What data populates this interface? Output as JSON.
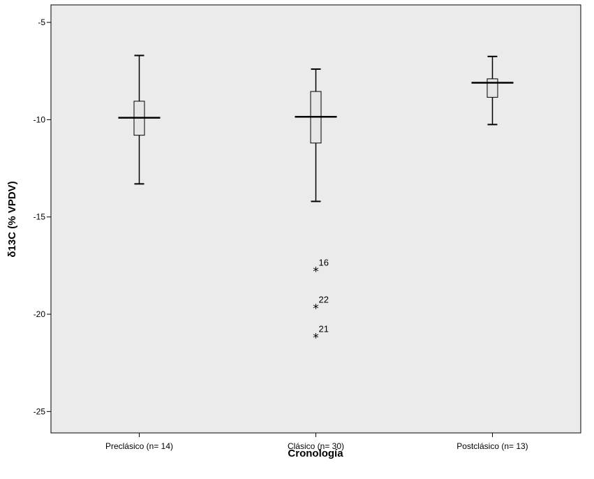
{
  "chart_data": {
    "type": "boxplot",
    "title": "",
    "xlabel": "Cronología",
    "ylabel": "δ13C (% VPDV)",
    "ylim": [
      -26.1,
      -4.1
    ],
    "yticks": [
      -5,
      -10,
      -15,
      -20,
      -25
    ],
    "ytick_labels": [
      "-5",
      "-10",
      "-15",
      "-20",
      "-25"
    ],
    "grid": false,
    "colors": {
      "plot_bg": "#ebebeb",
      "box_fill": "#e6e6e6",
      "stroke": "#000000"
    },
    "categories": [
      "Preclásico (n= 14)",
      "Clásico (n= 30)",
      "Postclásico (n= 13)"
    ],
    "boxes": [
      {
        "category": "Preclásico (n= 14)",
        "whisker_low": -13.3,
        "q1": -10.8,
        "median": -9.9,
        "q3": -9.05,
        "whisker_high": -6.7,
        "outliers": []
      },
      {
        "category": "Clásico (n= 30)",
        "whisker_low": -14.2,
        "q1": -11.2,
        "median": -9.85,
        "q3": -8.55,
        "whisker_high": -7.4,
        "outliers": [
          {
            "label": "16",
            "value": -17.8
          },
          {
            "label": "22",
            "value": -19.7
          },
          {
            "label": "21",
            "value": -21.2
          }
        ]
      },
      {
        "category": "Postclásico (n= 13)",
        "whisker_low": -10.25,
        "q1": -8.85,
        "median": -8.1,
        "q3": -7.9,
        "whisker_high": -6.75,
        "outliers": []
      }
    ]
  }
}
